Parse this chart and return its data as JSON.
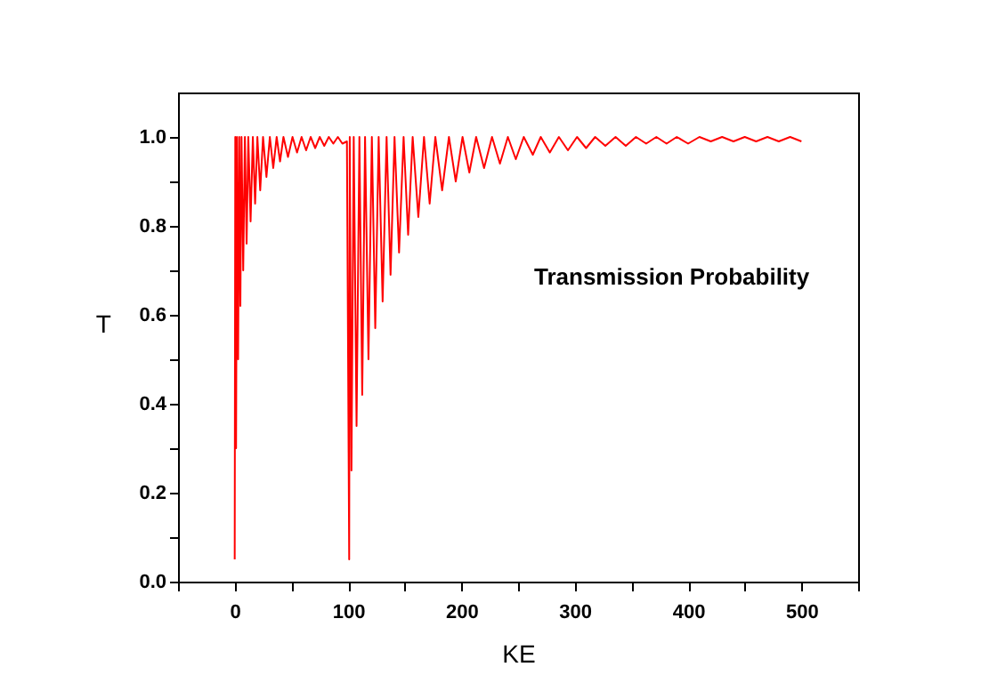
{
  "chart_data": {
    "type": "line",
    "xlabel": "KE",
    "ylabel": "T",
    "annotations": [
      "Transmission Probability"
    ],
    "x": [
      0,
      0.5,
      1.2,
      2,
      3,
      4,
      5,
      6,
      7.5,
      9,
      10.5,
      12,
      14,
      16,
      18,
      20,
      22.5,
      25,
      28,
      31,
      34,
      37,
      40,
      43,
      47,
      51,
      55,
      59,
      63,
      67,
      71,
      75,
      79,
      83,
      87,
      91,
      95,
      99,
      101,
      101.5,
      103,
      105,
      107.5,
      110,
      112.5,
      115,
      118,
      121,
      124,
      127,
      130.5,
      134,
      137.5,
      141,
      145,
      149,
      153,
      157,
      162,
      167,
      172,
      177,
      183,
      189,
      195,
      201,
      207,
      213,
      220,
      227,
      234,
      241,
      248,
      255,
      263,
      270,
      278,
      286,
      294,
      302,
      310,
      318,
      327,
      336,
      345,
      354,
      363,
      372,
      381,
      390,
      400,
      410,
      420,
      430,
      440,
      450,
      460,
      470,
      480,
      490,
      500
    ],
    "series": [
      {
        "color": "#ff0000",
        "values": [
          0.05,
          1.0,
          0.3,
          1.0,
          0.5,
          1.0,
          0.62,
          1.0,
          0.7,
          1.0,
          0.76,
          1.0,
          0.81,
          1.0,
          0.85,
          1.0,
          0.88,
          1.0,
          0.91,
          1.0,
          0.93,
          1.0,
          0.945,
          1.0,
          0.955,
          1.0,
          0.965,
          1.0,
          0.97,
          1.0,
          0.975,
          1.0,
          0.98,
          1.0,
          0.985,
          1.0,
          0.985,
          0.99,
          0.05,
          1.0,
          0.25,
          1.0,
          0.35,
          1.0,
          0.42,
          1.0,
          0.5,
          1.0,
          0.57,
          1.0,
          0.63,
          1.0,
          0.69,
          1.0,
          0.74,
          1.0,
          0.78,
          1.0,
          0.82,
          1.0,
          0.85,
          1.0,
          0.88,
          1.0,
          0.9,
          1.0,
          0.92,
          1.0,
          0.93,
          1.0,
          0.94,
          1.0,
          0.95,
          1.0,
          0.96,
          1.0,
          0.965,
          1.0,
          0.97,
          1.0,
          0.975,
          1.0,
          0.98,
          1.0,
          0.98,
          1.0,
          0.985,
          1.0,
          0.985,
          1.0,
          0.985,
          1.0,
          0.99,
          1.0,
          0.99,
          1.0,
          0.99,
          1.0,
          0.99,
          1.0,
          0.99
        ]
      }
    ],
    "xlim": [
      -50,
      550
    ],
    "xticks": [
      {
        "value": -50,
        "label": null
      },
      0,
      {
        "value": 50,
        "label": null
      },
      100,
      {
        "value": 150,
        "label": null
      },
      200,
      {
        "value": 250,
        "label": null
      },
      300,
      {
        "value": 350,
        "label": null
      },
      400,
      {
        "value": 450,
        "label": null
      },
      500,
      {
        "value": 550,
        "label": null
      }
    ],
    "ylim": [
      0,
      1.1
    ],
    "yticks": [
      {
        "value": 0,
        "label": "0.0"
      },
      {
        "value": 0.1,
        "label": null
      },
      0.2,
      {
        "value": 0.3,
        "label": null
      },
      0.4,
      {
        "value": 0.5,
        "label": null
      },
      0.6,
      {
        "value": 0.7,
        "label": null
      },
      0.8,
      {
        "value": 0.9,
        "label": null
      },
      {
        "value": 1,
        "label": "1.0"
      }
    ],
    "grid": false,
    "marker": "none",
    "line_style": "solid"
  }
}
